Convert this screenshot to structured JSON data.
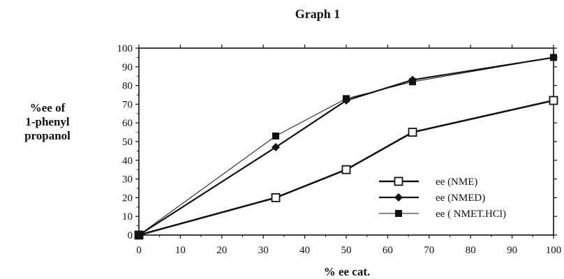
{
  "chart_data": {
    "type": "line",
    "title": "Graph 1",
    "xlabel": "% ee cat.",
    "ylabel_lines": [
      "%ee of",
      "1-phenyl",
      "propanol"
    ],
    "xlim": [
      0,
      100
    ],
    "ylim": [
      0,
      100
    ],
    "xticks": [
      0,
      10,
      20,
      30,
      40,
      50,
      60,
      70,
      80,
      90,
      100
    ],
    "yticks": [
      0,
      10,
      20,
      30,
      40,
      50,
      60,
      70,
      80,
      90,
      100
    ],
    "grid": false,
    "legend_position": "bottom-right",
    "series": [
      {
        "name": "ee (NME)",
        "marker": "open-square",
        "x": [
          0,
          33,
          50,
          66,
          100
        ],
        "y": [
          0,
          20,
          35,
          55,
          72
        ]
      },
      {
        "name": "ee (NMED)",
        "marker": "diamond",
        "x": [
          0,
          33,
          50,
          66,
          100
        ],
        "y": [
          0,
          47,
          72,
          83,
          95
        ]
      },
      {
        "name": "ee ( NMET.HCl)",
        "marker": "filled-square",
        "x": [
          0,
          33,
          50,
          66,
          100
        ],
        "y": [
          0,
          53,
          73,
          82,
          95
        ]
      }
    ]
  }
}
